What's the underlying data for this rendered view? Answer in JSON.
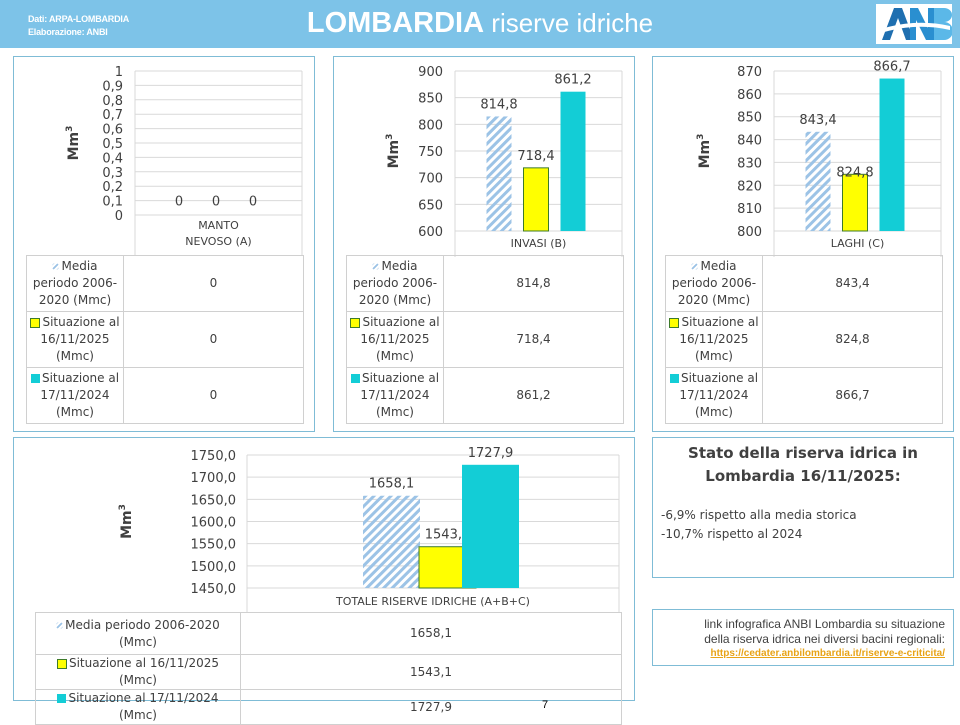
{
  "header": {
    "credits_line1": "Dati: ARPA-LOMBARDIA",
    "credits_line2": "Elaborazione: ANBI",
    "title_bold": "LOMBARDIA",
    "title_light": " riserve idriche",
    "logo": "ANBI-logo"
  },
  "colors": {
    "header_bg": "#7dc3e8",
    "panel_border": "#7fbcd6",
    "hatch_series": "#9cc3e6",
    "series_2025": "#ffff00",
    "series_2024": "#13cdd6",
    "link": "#e8a317"
  },
  "legend": [
    {
      "key": "hatch",
      "label": "Media periodo 2006-2020 (Mmc)"
    },
    {
      "key": "yellow",
      "label": "Situazione al 16/11/2025 (Mmc)"
    },
    {
      "key": "cyan",
      "label": "Situazione al 17/11/2024 (Mmc)"
    }
  ],
  "chart_data": [
    {
      "type": "bar",
      "title": "",
      "categories": [
        "MANTO NEVOSO (A)"
      ],
      "category_lines": [
        "MANTO",
        "NEVOSO (A)"
      ],
      "ylabel": "Mm3",
      "ylim": [
        0,
        1
      ],
      "yticks": [
        "0",
        "0,1",
        "0,2",
        "0,3",
        "0,4",
        "0,5",
        "0,6",
        "0,7",
        "0,8",
        "0,9",
        "1"
      ],
      "grid": true,
      "series": [
        {
          "name": "Media periodo 2006-2020 (Mmc)",
          "values": [
            0
          ],
          "labels": [
            "0"
          ],
          "table_value": "0"
        },
        {
          "name": "Situazione al 16/11/2025 (Mmc)",
          "values": [
            0
          ],
          "labels": [
            "0"
          ],
          "table_value": "0"
        },
        {
          "name": "Situazione al 17/11/2024 (Mmc)",
          "values": [
            0
          ],
          "labels": [
            "0"
          ],
          "table_value": "0"
        }
      ]
    },
    {
      "type": "bar",
      "title": "",
      "categories": [
        "INVASI (B)"
      ],
      "category_lines": [
        "INVASI (B)"
      ],
      "ylabel": "Mm3",
      "ylim": [
        600,
        900
      ],
      "yticks": [
        "600",
        "650",
        "700",
        "750",
        "800",
        "850",
        "900"
      ],
      "grid": true,
      "series": [
        {
          "name": "Media periodo 2006-2020 (Mmc)",
          "values": [
            814.8
          ],
          "labels": [
            "814,8"
          ],
          "table_value": "814,8"
        },
        {
          "name": "Situazione al 16/11/2025 (Mmc)",
          "values": [
            718.4
          ],
          "labels": [
            "718,4"
          ],
          "table_value": "718,4"
        },
        {
          "name": "Situazione al 17/11/2024 (Mmc)",
          "values": [
            861.2
          ],
          "labels": [
            "861,2"
          ],
          "table_value": "861,2"
        }
      ]
    },
    {
      "type": "bar",
      "title": "",
      "categories": [
        "LAGHI (C)"
      ],
      "category_lines": [
        "LAGHI (C)"
      ],
      "ylabel": "Mm3",
      "ylim": [
        800,
        870
      ],
      "yticks": [
        "800",
        "810",
        "820",
        "830",
        "840",
        "850",
        "860",
        "870"
      ],
      "grid": true,
      "series": [
        {
          "name": "Media periodo 2006-2020 (Mmc)",
          "values": [
            843.4
          ],
          "labels": [
            "843,4"
          ],
          "table_value": "843,4"
        },
        {
          "name": "Situazione al 16/11/2025 (Mmc)",
          "values": [
            824.8
          ],
          "labels": [
            "824,8"
          ],
          "table_value": "824,8"
        },
        {
          "name": "Situazione al 17/11/2024 (Mmc)",
          "values": [
            866.7
          ],
          "labels": [
            "866,7"
          ],
          "table_value": "866,7"
        }
      ]
    },
    {
      "type": "bar",
      "title": "",
      "categories": [
        "TOTALE RISERVE IDRICHE (A+B+C)"
      ],
      "category_lines": [
        "TOTALE RISERVE IDRICHE (A+B+C)"
      ],
      "ylabel": "Mm3",
      "ylim": [
        1450,
        1750
      ],
      "yticks": [
        "1450,0",
        "1500,0",
        "1550,0",
        "1600,0",
        "1650,0",
        "1700,0",
        "1750,0"
      ],
      "grid": true,
      "series": [
        {
          "name": "Media periodo 2006-2020 (Mmc)",
          "values": [
            1658.1
          ],
          "labels": [
            "1658,1"
          ],
          "table_value": "1658,1"
        },
        {
          "name": "Situazione al 16/11/2025 (Mmc)",
          "values": [
            1543.1
          ],
          "labels": [
            "1543,1"
          ],
          "table_value": "1543,1"
        },
        {
          "name": "Situazione al 17/11/2024 (Mmc)",
          "values": [
            1727.9
          ],
          "labels": [
            "1727,9"
          ],
          "table_value": "1727,9"
        }
      ]
    }
  ],
  "small_table_legend": [
    [
      "Media",
      "periodo 2006-",
      "2020 (Mmc)"
    ],
    [
      "Situazione al",
      "16/11/2025",
      "(Mmc)"
    ],
    [
      "Situazione al",
      "17/11/2024",
      "(Mmc)"
    ]
  ],
  "big_table_legend": [
    [
      "Media periodo 2006-2020",
      "(Mmc)"
    ],
    [
      "Situazione al 16/11/2025 (Mmc)"
    ],
    [
      "Situazione al 17/11/2024 (Mmc)"
    ]
  ],
  "status": {
    "title_line1": "Stato della riserva idrica in",
    "title_line2": "Lombardia 16/11/2025:",
    "line1": "-6,9% rispetto alla media storica",
    "line2": "-10,7% rispetto al 2024"
  },
  "link_box": {
    "text_line1": "link infografica ANBI Lombardia su situazione",
    "text_line2": "della riserva idrica nei diversi bacini regionali:",
    "url": "https://cedater.anbilombardia.it/riserve-e-criticita/"
  },
  "page_number": "7"
}
